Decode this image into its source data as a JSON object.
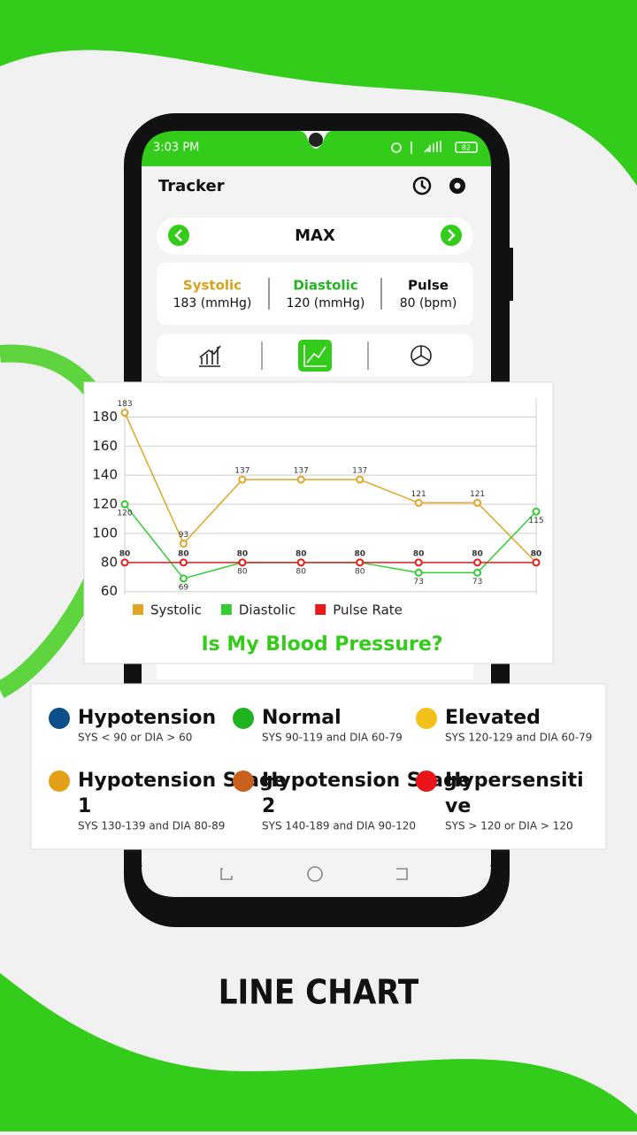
{
  "status_bar": {
    "time": "3:03 PM",
    "battery": "82"
  },
  "header": {
    "title": "Tracker"
  },
  "selector": {
    "label": "MAX"
  },
  "summary": [
    {
      "label": "Systolic",
      "value": "183 (mmHg)",
      "color": "#d9a21b"
    },
    {
      "label": "Diastolic",
      "value": "120 (mmHg)",
      "color": "#22b422"
    },
    {
      "label": "Pulse",
      "value": "80 (bpm)",
      "color": "#111111"
    }
  ],
  "chart_data": {
    "type": "line",
    "categories": [
      null,
      null,
      null,
      null,
      null,
      null,
      null,
      null
    ],
    "series": [
      {
        "name": "Systolic",
        "color": "#e0a526",
        "values": [
          183,
          93,
          137,
          137,
          137,
          121,
          121,
          80
        ]
      },
      {
        "name": "Diastolic",
        "color": "#33cc33",
        "values": [
          120,
          69,
          80,
          80,
          80,
          73,
          73,
          115
        ]
      },
      {
        "name": "Pulse Rate",
        "color": "#e81b1b",
        "values": [
          80,
          80,
          80,
          80,
          80,
          80,
          80,
          80
        ]
      }
    ],
    "ylim": [
      58,
      193
    ],
    "yticks": [
      60,
      80,
      100,
      120,
      140,
      160,
      180
    ],
    "grid": true,
    "caption": "Is My Blood Pressure?"
  },
  "categories_legend": [
    {
      "name": "Hypotension",
      "desc": "SYS < 90 or DIA > 60",
      "color": "#0c4f8a"
    },
    {
      "name": "Normal",
      "desc": "SYS 90-119 and DIA 60-79",
      "color": "#1fb41f"
    },
    {
      "name": "Elevated",
      "desc": "SYS 120-129 and DIA 60-79",
      "color": "#f2c018"
    },
    {
      "name": "Hypotension Stage 1",
      "desc": "SYS 130-139 and DIA 80-89",
      "color": "#e3a016"
    },
    {
      "name": "Hypotension Stage 2",
      "desc": "SYS 140-189 and DIA 90-120",
      "color": "#c8601e"
    },
    {
      "name": "Hypersensitive",
      "desc": "SYS > 120 or DIA > 120",
      "color": "#e8141a"
    }
  ],
  "footer": {
    "title": "LINE CHART"
  }
}
